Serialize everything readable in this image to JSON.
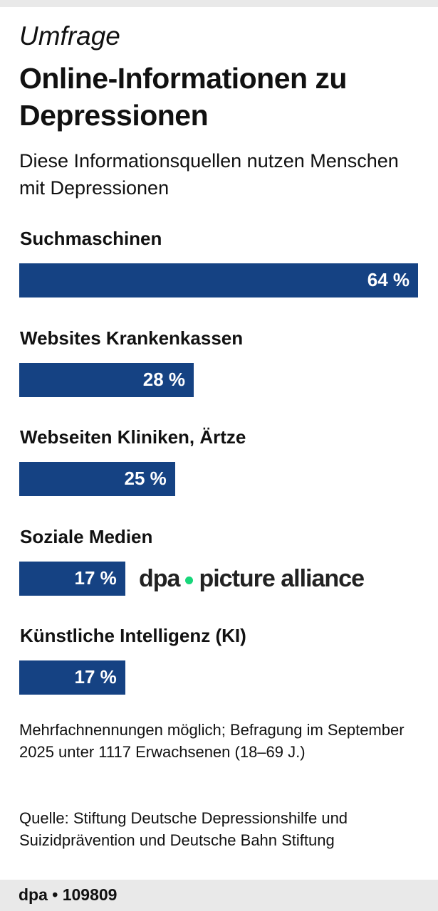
{
  "kicker": "Umfrage",
  "title": "Online-Informationen zu Depressionen",
  "subtitle": "Diese Informationsquellen nutzen Menschen mit Depressionen",
  "chart_data": {
    "type": "bar",
    "orientation": "horizontal",
    "categories": [
      "Suchmaschinen",
      "Websites Krankenkassen",
      "Webseiten Kliniken, Ärtze",
      "Soziale Medien",
      "Künstliche Intelligenz (KI)"
    ],
    "values": [
      64,
      28,
      25,
      17,
      17
    ],
    "labels": [
      "64 %",
      "28 %",
      "25 %",
      "17 %",
      "17 %"
    ],
    "unit": "%",
    "bar_color": "#154283",
    "grid": false
  },
  "note": "Mehrfachnennungen möglich; Befragung im September 2025 unter 1117 Erwachsenen (18–69 J.)",
  "source": "Quelle: Stiftung Deutsche Depressionshilfe und Suizidprävention und Deutsche Bahn Stiftung",
  "footer": "dpa • 109809",
  "watermark": {
    "left": "dpa",
    "right": "picture alliance",
    "dot_color": "#17d67a"
  }
}
